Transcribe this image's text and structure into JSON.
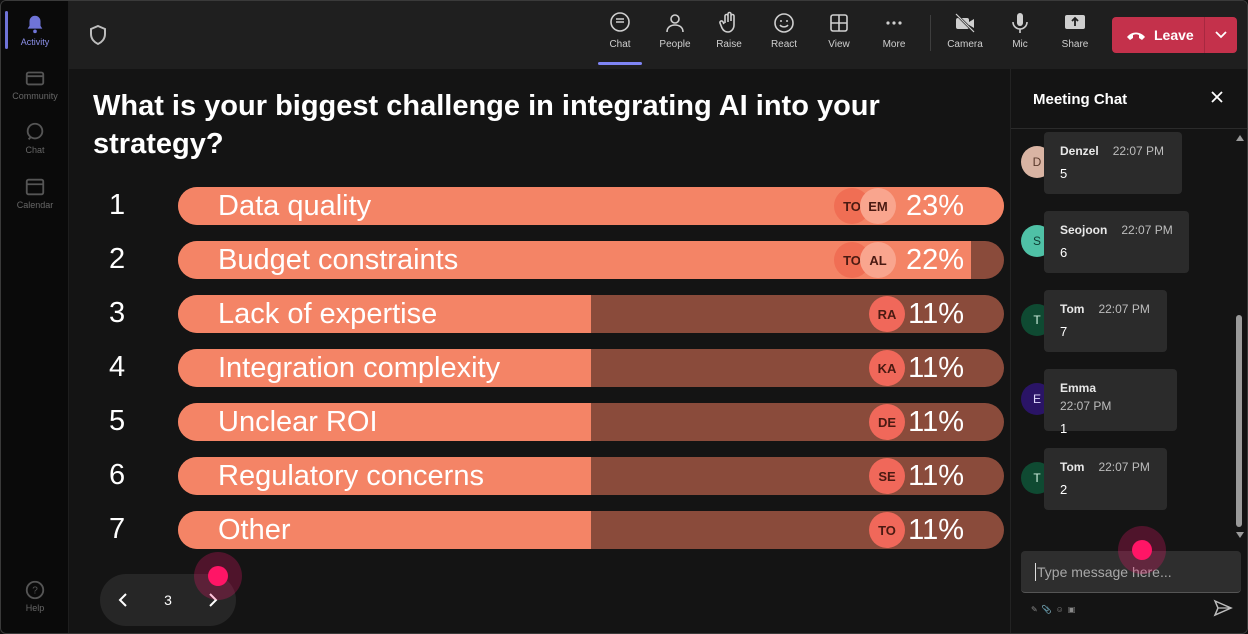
{
  "rail": {
    "items": [
      {
        "label": "Activity",
        "icon": "bell-icon",
        "active": true
      },
      {
        "label": "Community",
        "icon": "community-icon"
      },
      {
        "label": "Chat",
        "icon": "chat-icon"
      },
      {
        "label": "Calendar",
        "icon": "calendar-icon"
      },
      {
        "label": "Help",
        "icon": "help-icon"
      }
    ]
  },
  "topbar": {
    "buttons": [
      {
        "label": "Chat",
        "icon": "chat-bubble-icon",
        "active": true
      },
      {
        "label": "People",
        "icon": "person-icon"
      },
      {
        "label": "Raise",
        "icon": "hand-icon"
      },
      {
        "label": "React",
        "icon": "smiley-icon"
      },
      {
        "label": "View",
        "icon": "grid-icon"
      },
      {
        "label": "More",
        "icon": "ellipsis-icon"
      },
      {
        "label": "Camera",
        "icon": "camera-off-icon"
      },
      {
        "label": "Mic",
        "icon": "microphone-icon"
      },
      {
        "label": "Share",
        "icon": "share-screen-icon"
      }
    ],
    "leave_label": "Leave"
  },
  "poll": {
    "question": "What is your biggest challenge in integrating AI into your strategy?",
    "options": [
      {
        "num": "1",
        "label": "Data quality",
        "pct": "23%",
        "fill": 1.0,
        "chips": [
          "TO",
          "EM"
        ]
      },
      {
        "num": "2",
        "label": "Budget constraints",
        "pct": "22%",
        "fill": 0.96,
        "chips": [
          "TO",
          "AL"
        ]
      },
      {
        "num": "3",
        "label": "Lack of expertise",
        "pct": "11%",
        "fill": 0.5,
        "chips": [
          "RA"
        ]
      },
      {
        "num": "4",
        "label": "Integration complexity",
        "pct": "11%",
        "fill": 0.5,
        "chips": [
          "KA"
        ]
      },
      {
        "num": "5",
        "label": "Unclear ROI",
        "pct": "11%",
        "fill": 0.5,
        "chips": [
          "DE"
        ]
      },
      {
        "num": "6",
        "label": "Regulatory concerns",
        "pct": "11%",
        "fill": 0.5,
        "chips": [
          "SE"
        ]
      },
      {
        "num": "7",
        "label": "Other",
        "pct": "11%",
        "fill": 0.5,
        "chips": [
          "TO"
        ]
      }
    ],
    "page": "3"
  },
  "chat": {
    "title": "Meeting Chat",
    "messages": [
      {
        "initial": "D",
        "name": "Denzel",
        "time": "22:07 PM",
        "text": "5",
        "color": "#d9b4a3",
        "fg": "#5a3a2c"
      },
      {
        "initial": "S",
        "name": "Seojoon",
        "time": "22:07 PM",
        "text": "6",
        "color": "#4fc1a6",
        "fg": "#0e3d33"
      },
      {
        "initial": "T",
        "name": "Tom",
        "time": "22:07 PM",
        "text": "7",
        "color": "#0f4a32",
        "fg": "#d0f0e0"
      },
      {
        "initial": "E",
        "name": "Emma",
        "time": "22:07 PM",
        "text": "1",
        "color": "#2a1466",
        "fg": "#e0d8ff"
      },
      {
        "initial": "T",
        "name": "Tom",
        "time": "22:07 PM",
        "text": "2",
        "color": "#0f4a32",
        "fg": "#d0f0e0"
      }
    ],
    "input_placeholder": "Type message here..."
  }
}
